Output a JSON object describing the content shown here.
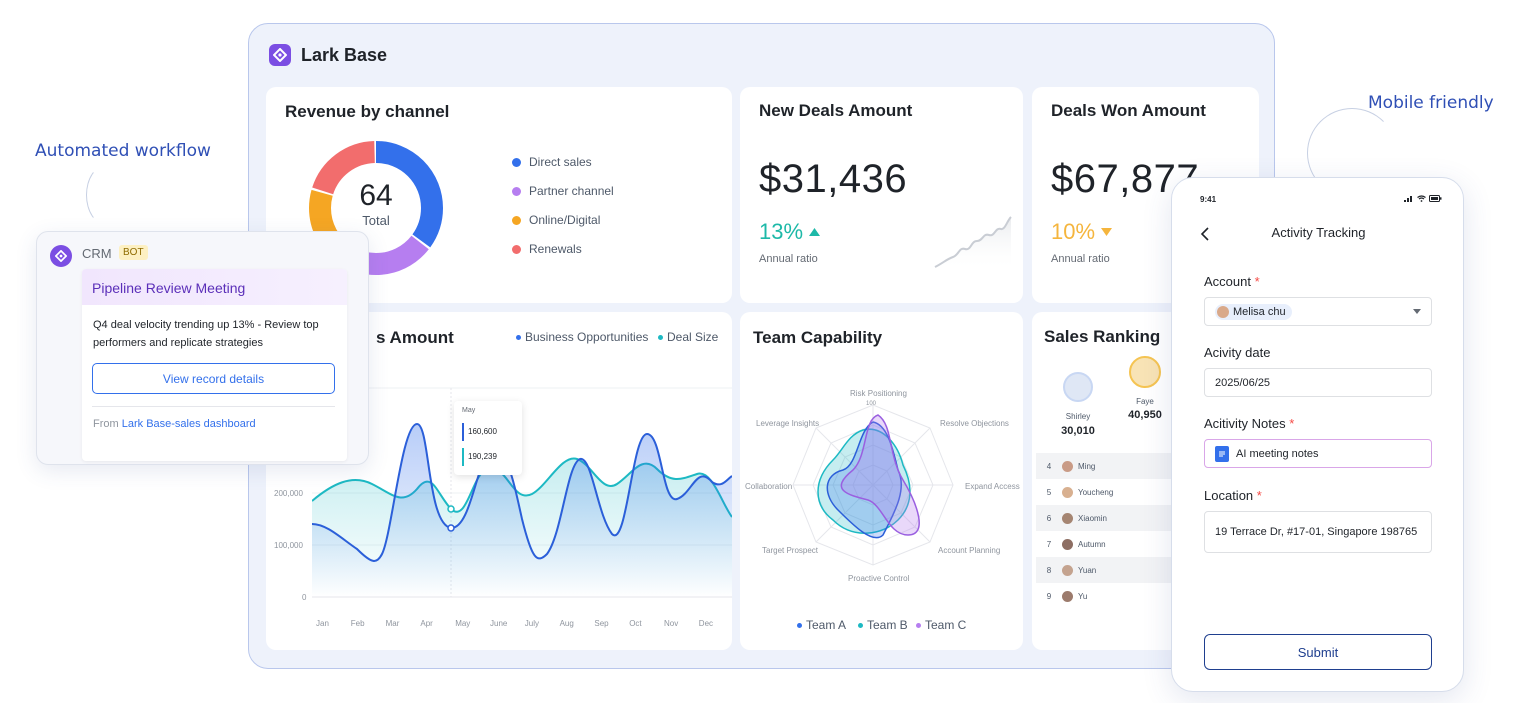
{
  "annotations": {
    "left": "Automated workflow",
    "right": "Mobile friendly"
  },
  "app": {
    "title": "Lark Base"
  },
  "revenue": {
    "title": "Revenue by channel",
    "center_value": "64",
    "center_label": "Total",
    "legend": [
      {
        "label": "Direct sales",
        "color": "#3370eb"
      },
      {
        "label": "Partner channel",
        "color": "#b67ef0"
      },
      {
        "label": "Online/Digital",
        "color": "#f5a623"
      },
      {
        "label": "Renewals",
        "color": "#f26d6d"
      }
    ]
  },
  "new_deals": {
    "title": "New Deals Amount",
    "value": "$31,436",
    "pct": "13%",
    "pct_label": "Annual ratio",
    "color": "#1db9a8"
  },
  "deals_won": {
    "title": "Deals Won Amount",
    "value": "$67,877",
    "pct": "10%",
    "pct_label": "Annual ratio",
    "color": "#f5b53d"
  },
  "sales_amount": {
    "title_partial": "s Amount",
    "legend": [
      "Business Opportunities",
      "Deal Size"
    ],
    "tooltip": {
      "month": "May",
      "v1": "160,600",
      "v2": "190,239"
    },
    "y_ticks": [
      "200,000",
      "100,000",
      "0"
    ],
    "x_ticks": [
      "Jan",
      "Feb",
      "Mar",
      "Apr",
      "May",
      "June",
      "July",
      "Aug",
      "Sep",
      "Oct",
      "Nov",
      "Dec"
    ]
  },
  "team": {
    "title": "Team Capability",
    "axes": [
      "Risk Positioning",
      "Resolve Objections",
      "Expand Access",
      "Account Planning",
      "Proactive Control",
      "Target Prospect",
      "Collaboration",
      "Leverage Insights"
    ],
    "scale_top": "100",
    "legend": [
      {
        "label": "Team A",
        "color": "#3370eb"
      },
      {
        "label": "Team B",
        "color": "#1db9c3"
      },
      {
        "label": "Team C",
        "color": "#b67ef0"
      }
    ]
  },
  "ranking": {
    "title": "Sales Ranking",
    "top": [
      {
        "name": "Shirley",
        "value": "30,010"
      },
      {
        "name": "Faye",
        "value": "40,950"
      }
    ],
    "rows": [
      {
        "idx": "4",
        "name": "Ming"
      },
      {
        "idx": "5",
        "name": "Youcheng"
      },
      {
        "idx": "6",
        "name": "Xiaomin"
      },
      {
        "idx": "7",
        "name": "Autumn"
      },
      {
        "idx": "8",
        "name": "Yuan"
      },
      {
        "idx": "9",
        "name": "Yu"
      }
    ]
  },
  "crm": {
    "name": "CRM",
    "badge": "BOT",
    "card_title": "Pipeline Review Meeting",
    "body": "Q4 deal velocity trending up 13% - Review top performers and replicate strategies",
    "button": "View record details",
    "from_prefix": "From",
    "from_link": "Lark Base-sales dashboard"
  },
  "phone": {
    "time": "9:41",
    "title": "Activity Tracking",
    "account_label": "Account",
    "account_value": "Melisa chu",
    "date_label": "Acivity date",
    "date_value": "2025/06/25",
    "notes_label": "Acitivity Notes",
    "notes_value": "AI meeting notes",
    "location_label": "Location",
    "location_value": "19 Terrace Dr, #17-01, Singapore 198765",
    "submit": "Submit",
    "required_mark": "*"
  }
}
